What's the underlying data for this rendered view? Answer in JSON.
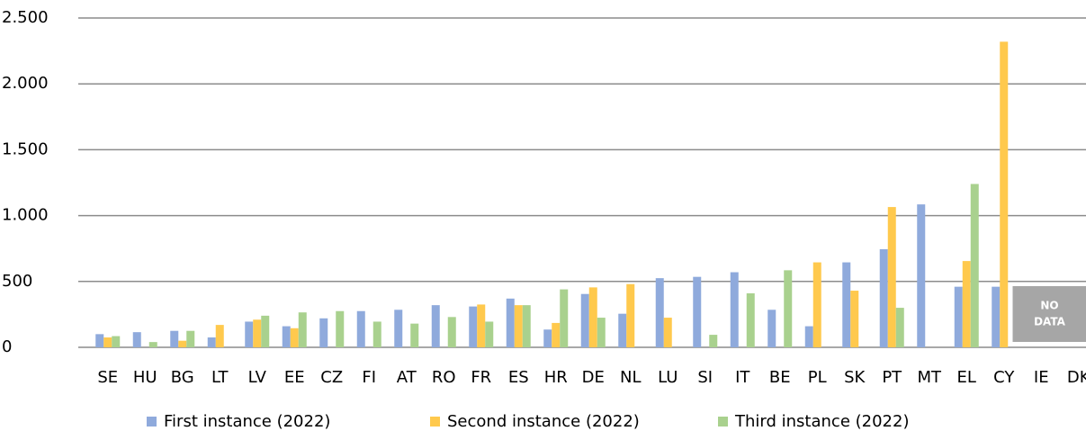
{
  "chart_data": {
    "type": "bar",
    "categories": [
      "SE",
      "HU",
      "BG",
      "LT",
      "LV",
      "EE",
      "CZ",
      "FI",
      "AT",
      "RO",
      "FR",
      "ES",
      "HR",
      "DE",
      "NL",
      "LU",
      "SI",
      "IT",
      "BE",
      "PL",
      "SK",
      "PT",
      "MT",
      "EL",
      "CY",
      "IE",
      "DK"
    ],
    "series": [
      {
        "name": "First instance (2022)",
        "color": "#8faadc",
        "values": [
          100,
          115,
          125,
          75,
          195,
          160,
          220,
          275,
          285,
          320,
          310,
          370,
          135,
          405,
          255,
          525,
          535,
          570,
          285,
          160,
          645,
          745,
          1085,
          460,
          460,
          null,
          null
        ]
      },
      {
        "name": "Second instance (2022)",
        "color": "#ffc94d",
        "values": [
          75,
          null,
          50,
          170,
          210,
          145,
          null,
          null,
          null,
          null,
          325,
          320,
          185,
          455,
          480,
          225,
          null,
          null,
          null,
          645,
          430,
          1065,
          null,
          655,
          2320,
          null,
          null
        ]
      },
      {
        "name": "Third instance (2022)",
        "color": "#a9d18e",
        "values": [
          85,
          40,
          125,
          null,
          240,
          265,
          275,
          195,
          180,
          230,
          195,
          320,
          440,
          225,
          null,
          null,
          95,
          410,
          585,
          null,
          null,
          300,
          null,
          1240,
          null,
          null,
          null
        ]
      }
    ],
    "ylim": [
      0,
      2500
    ],
    "yticks": [
      0,
      500,
      {
        "value": 1000,
        "label": "1.000"
      },
      {
        "value": 1500,
        "label": "1.500"
      },
      {
        "value": 2000,
        "label": "2.000"
      },
      {
        "value": 2500,
        "label": "2.500"
      }
    ],
    "grid": true,
    "legend": "bottom",
    "annotation_lines": [
      "NO",
      "DATA"
    ]
  }
}
